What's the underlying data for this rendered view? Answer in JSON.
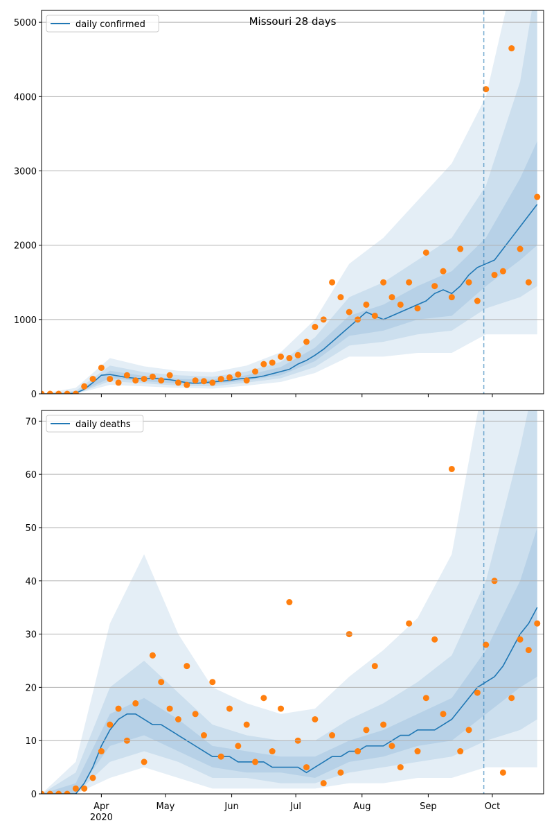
{
  "chart_data": [
    {
      "type": "line",
      "title": "Missouri 28 days",
      "legend": "upper left",
      "grid": true,
      "x": [
        3,
        7,
        11,
        15,
        19,
        23,
        27,
        31,
        35,
        39,
        43,
        47,
        51,
        55,
        59,
        63,
        67,
        71,
        75,
        79,
        83,
        87,
        91,
        95,
        99,
        103,
        107,
        111,
        115,
        119,
        123,
        127,
        131,
        135,
        139,
        143,
        147,
        151,
        155,
        159,
        163,
        167,
        171,
        175,
        179,
        183,
        187,
        191,
        195,
        199,
        203,
        207,
        211,
        215,
        219,
        223,
        227,
        231,
        235
      ],
      "xlim": [
        3,
        238
      ],
      "ylim": [
        0,
        5160
      ],
      "yticks": [
        0,
        1000,
        2000,
        3000,
        4000,
        5000
      ],
      "vline": 210,
      "series": [
        {
          "name": "daily confirmed",
          "color": "#1f77b4",
          "values": [
            0,
            0,
            0,
            0,
            10,
            60,
            150,
            250,
            260,
            240,
            220,
            210,
            200,
            210,
            200,
            190,
            170,
            150,
            140,
            150,
            160,
            170,
            180,
            200,
            210,
            220,
            240,
            270,
            300,
            330,
            400,
            450,
            520,
            600,
            700,
            800,
            900,
            1000,
            1100,
            1050,
            1000,
            1050,
            1100,
            1150,
            1200,
            1250,
            1350,
            1400,
            1350,
            1450,
            1600,
            1700,
            1750,
            1800,
            1950,
            2100,
            2250,
            2400,
            2550
          ]
        }
      ],
      "points": {
        "color": "#ff7f0e",
        "values": [
          0,
          0,
          0,
          0,
          0,
          100,
          200,
          350,
          200,
          150,
          250,
          180,
          200,
          230,
          180,
          250,
          150,
          120,
          180,
          170,
          150,
          200,
          220,
          260,
          180,
          300,
          400,
          420,
          500,
          480,
          520,
          700,
          900,
          1000,
          1500,
          1300,
          1100,
          1000,
          1200,
          1050,
          1500,
          1300,
          1200,
          1500,
          1150,
          1900,
          1450,
          1650,
          1300,
          1950,
          1500,
          1250,
          4100,
          1600,
          1650,
          4650,
          1950,
          1500,
          2650
        ]
      },
      "bands": {
        "color": "#1f77b4",
        "opacity": 0.12,
        "x": [
          3,
          19,
          35,
          51,
          67,
          83,
          99,
          115,
          131,
          147,
          163,
          179,
          195,
          211,
          227,
          235
        ],
        "lower": [
          [
            0,
            0,
            120,
            100,
            80,
            70,
            110,
            160,
            280,
            500,
            500,
            550,
            550,
            800,
            800,
            800
          ],
          [
            0,
            0,
            170,
            140,
            110,
            100,
            150,
            210,
            360,
            650,
            700,
            800,
            850,
            1150,
            1300,
            1450
          ],
          [
            0,
            0,
            210,
            170,
            140,
            130,
            180,
            250,
            440,
            780,
            850,
            1000,
            1050,
            1450,
            1800,
            2000
          ]
        ],
        "upper": [
          [
            0,
            80,
            480,
            370,
            310,
            290,
            380,
            560,
            1000,
            1750,
            2100,
            2600,
            3100,
            4000,
            6000,
            6000
          ],
          [
            0,
            40,
            380,
            290,
            250,
            230,
            300,
            430,
            760,
            1300,
            1500,
            1800,
            2100,
            2800,
            4200,
            5600
          ],
          [
            0,
            20,
            310,
            240,
            200,
            190,
            250,
            360,
            620,
            1050,
            1200,
            1450,
            1650,
            2100,
            2900,
            3400
          ]
        ]
      }
    },
    {
      "type": "line",
      "legend": "upper left",
      "grid": true,
      "x": [
        3,
        7,
        11,
        15,
        19,
        23,
        27,
        31,
        35,
        39,
        43,
        47,
        51,
        55,
        59,
        63,
        67,
        71,
        75,
        79,
        83,
        87,
        91,
        95,
        99,
        103,
        107,
        111,
        115,
        119,
        123,
        127,
        131,
        135,
        139,
        143,
        147,
        151,
        155,
        159,
        163,
        167,
        171,
        175,
        179,
        183,
        187,
        191,
        195,
        199,
        203,
        207,
        211,
        215,
        219,
        223,
        227,
        231,
        235
      ],
      "xlim": [
        3,
        238
      ],
      "ylim": [
        0,
        72
      ],
      "yticks": [
        0,
        10,
        20,
        30,
        40,
        50,
        60,
        70
      ],
      "vline": 210,
      "xticks": [
        {
          "value": 31,
          "label": "Apr"
        },
        {
          "value": 61,
          "label": "May"
        },
        {
          "value": 92,
          "label": "Jun"
        },
        {
          "value": 122,
          "label": "Jul"
        },
        {
          "value": 153,
          "label": "Aug"
        },
        {
          "value": 184,
          "label": "Sep"
        },
        {
          "value": 214,
          "label": "Oct"
        }
      ],
      "xtick_year": {
        "value": 31,
        "label": "2020"
      },
      "series": [
        {
          "name": "daily deaths",
          "color": "#1f77b4",
          "values": [
            0,
            0,
            0,
            0,
            0,
            2,
            5,
            9,
            12,
            14,
            15,
            15,
            14,
            13,
            13,
            12,
            11,
            10,
            9,
            8,
            7,
            7,
            7,
            6,
            6,
            6,
            6,
            5,
            5,
            5,
            5,
            4,
            5,
            6,
            7,
            7,
            8,
            8,
            9,
            9,
            9,
            10,
            11,
            11,
            12,
            12,
            12,
            13,
            14,
            16,
            18,
            20,
            21,
            22,
            24,
            27,
            30,
            32,
            35
          ]
        }
      ],
      "points": {
        "color": "#ff7f0e",
        "values": [
          0,
          0,
          0,
          0,
          1,
          1,
          3,
          8,
          13,
          16,
          10,
          17,
          6,
          26,
          21,
          16,
          14,
          24,
          15,
          11,
          21,
          7,
          16,
          9,
          13,
          6,
          18,
          8,
          16,
          36,
          10,
          5,
          14,
          2,
          11,
          4,
          30,
          8,
          12,
          24,
          13,
          9,
          5,
          32,
          8,
          18,
          29,
          15,
          61,
          8,
          12,
          19,
          28,
          40,
          4,
          18,
          29,
          27,
          32
        ]
      },
      "bands": {
        "color": "#1f77b4",
        "opacity": 0.12,
        "x": [
          3,
          19,
          35,
          51,
          67,
          83,
          99,
          115,
          131,
          147,
          163,
          179,
          195,
          211,
          227,
          235
        ],
        "lower": [
          [
            0,
            0,
            3,
            5,
            3,
            1,
            1,
            1,
            1,
            2,
            2,
            3,
            3,
            5,
            5,
            5
          ],
          [
            0,
            0,
            6,
            8,
            6,
            3,
            3,
            2,
            2,
            4,
            5,
            6,
            7,
            10,
            12,
            14
          ],
          [
            0,
            0,
            9,
            11,
            8,
            5,
            4,
            4,
            3,
            6,
            7,
            9,
            10,
            15,
            20,
            22
          ]
        ],
        "upper": [
          [
            0,
            6,
            32,
            45,
            30,
            20,
            17,
            15,
            16,
            22,
            27,
            33,
            45,
            80,
            100,
            100
          ],
          [
            0,
            4,
            20,
            25,
            19,
            13,
            11,
            10,
            10,
            14,
            17,
            21,
            26,
            40,
            65,
            80
          ],
          [
            0,
            2,
            15,
            18,
            14,
            9,
            8,
            7,
            7,
            10,
            12,
            15,
            18,
            27,
            40,
            50
          ]
        ]
      }
    }
  ]
}
